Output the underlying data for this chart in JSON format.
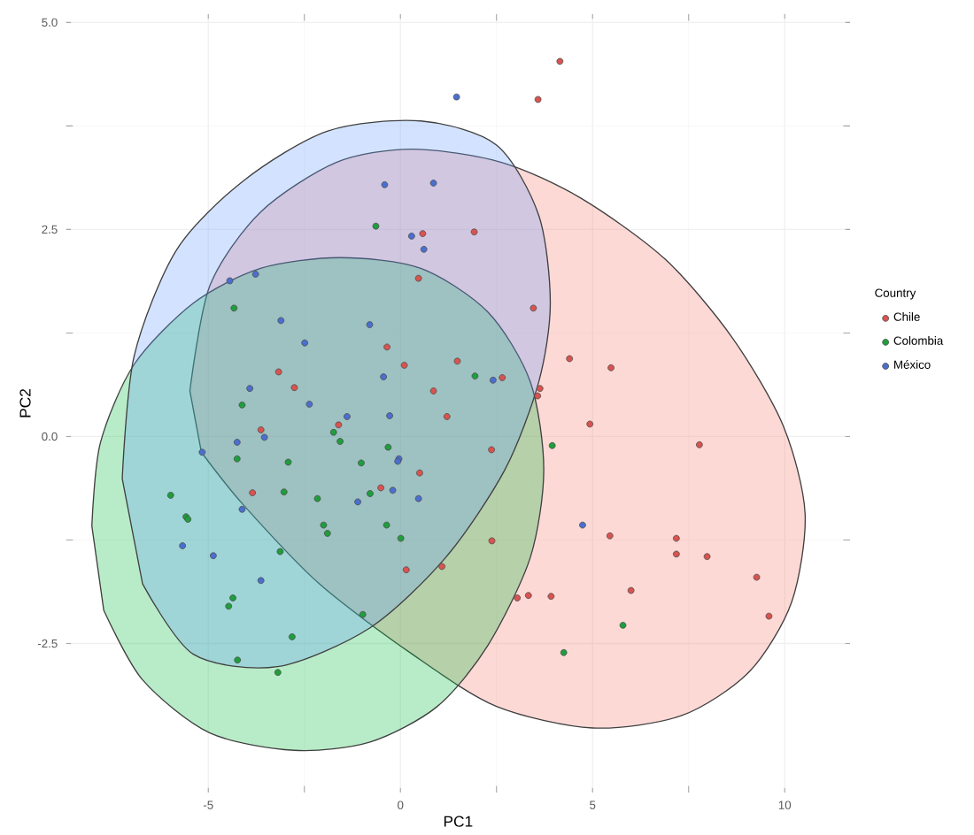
{
  "chart_data": {
    "type": "scatter",
    "xlabel": "PC1",
    "ylabel": "PC2",
    "legend_title": "Country",
    "legend": "right",
    "grid": true,
    "xlim": [
      -8.7,
      11.7
    ],
    "ylim": [
      -4.3,
      5.1
    ],
    "xticks": [
      -5,
      0,
      5,
      10
    ],
    "yticks": [
      -2.5,
      {
        "value": 0,
        "label": "0.0"
      },
      2.5,
      {
        "value": 5,
        "label": "5.0"
      }
    ],
    "series": [
      {
        "type": "area",
        "marker": "none",
        "color": "#f8766d",
        "x": [
          -5.48,
          -4.96,
          -3.64,
          -1.67,
          0.31,
          2.63,
          4.69,
          6.89,
          8.64,
          9.96,
          10.53,
          10.18,
          9.08,
          7.32,
          5.0,
          2.5,
          0.31,
          -2.11,
          -4.08,
          -5.18
        ],
        "values": [
          0.55,
          1.82,
          2.71,
          3.31,
          3.47,
          3.31,
          2.88,
          2.14,
          1.19,
          0.13,
          -0.93,
          -2.0,
          -2.84,
          -3.37,
          -3.52,
          -3.26,
          -2.63,
          -1.78,
          -0.83,
          -0.19
        ]
      },
      {
        "type": "area",
        "marker": "none",
        "color": "#00ba38",
        "x": [
          -8.03,
          -7.81,
          -6.93,
          -5.39,
          -3.64,
          -1.58,
          0.53,
          2.28,
          3.38,
          3.73,
          3.38,
          2.28,
          0.96,
          -0.79,
          -2.76,
          -4.96,
          -6.71,
          -7.72
        ],
        "values": [
          -1.08,
          -0.08,
          0.87,
          1.61,
          2.03,
          2.16,
          2.03,
          1.5,
          0.66,
          -0.4,
          -1.46,
          -2.52,
          -3.26,
          -3.69,
          -3.79,
          -3.58,
          -2.94,
          -2.1
        ]
      },
      {
        "type": "area",
        "marker": "none",
        "color": "#619cff",
        "x": [
          -7.24,
          -6.93,
          -5.83,
          -4.08,
          -1.89,
          0.53,
          2.5,
          3.6,
          3.9,
          3.6,
          2.72,
          1.18,
          -0.79,
          -3.2,
          -5.39,
          -6.71
        ],
        "values": [
          -0.51,
          0.97,
          2.25,
          3.09,
          3.69,
          3.81,
          3.52,
          2.67,
          1.61,
          0.66,
          -0.4,
          -1.46,
          -2.31,
          -2.78,
          -2.63,
          -1.78
        ]
      },
      {
        "marker": "circle",
        "name": "Chile",
        "color": "#d9534f",
        "x": [
          0.47,
          3.46,
          4.4,
          -0.35,
          0.1,
          1.48,
          2.65,
          -3.17,
          -2.76,
          0.86,
          3.63,
          3.57,
          1.21,
          -3.63,
          -1.61,
          2.37,
          0.5,
          -0.51,
          -3.85,
          2.38,
          0.58,
          1.92,
          4.15,
          3.58,
          5.48,
          4.93,
          7.78,
          5.45,
          7.18,
          7.18,
          7.98,
          9.27,
          9.59,
          3.04,
          3.33,
          3.92,
          6.0,
          1.08,
          0.15
        ],
        "values": [
          1.91,
          1.55,
          0.94,
          1.08,
          0.86,
          0.91,
          0.71,
          0.78,
          0.59,
          0.55,
          0.58,
          0.49,
          0.24,
          0.08,
          0.14,
          -0.16,
          -0.44,
          -0.62,
          -0.68,
          -1.26,
          2.45,
          2.47,
          4.53,
          4.07,
          0.83,
          0.15,
          -0.1,
          -1.2,
          -1.23,
          -1.42,
          -1.45,
          -1.7,
          -2.17,
          -1.95,
          -1.92,
          -1.93,
          -1.86,
          -1.57,
          -1.61
        ]
      },
      {
        "marker": "circle",
        "name": "Colombia",
        "color": "#1e9e3c",
        "x": [
          -4.33,
          1.94,
          -4.12,
          -1.74,
          -1.57,
          -4.25,
          -2.92,
          -0.32,
          -1.02,
          3.95,
          -3.03,
          -0.79,
          -5.98,
          -5.58,
          -5.53,
          -2.16,
          -2.0,
          -1.9,
          -0.36,
          0.01,
          -0.64,
          5.79,
          4.25,
          -3.13,
          -4.36,
          -4.47,
          -0.98,
          -2.82,
          -4.24,
          -3.19
        ],
        "values": [
          1.55,
          0.73,
          0.38,
          0.05,
          -0.06,
          -0.27,
          -0.31,
          -0.13,
          -0.32,
          -0.11,
          -0.67,
          -0.69,
          -0.71,
          -0.97,
          -1.0,
          -0.75,
          -1.07,
          -1.17,
          -1.07,
          -1.23,
          2.54,
          -2.28,
          -2.61,
          -1.39,
          -1.95,
          -2.05,
          -2.15,
          -2.42,
          -2.7,
          -2.85
        ]
      },
      {
        "marker": "circle",
        "name": "México",
        "color": "#4a6fd0",
        "x": [
          -4.44,
          -3.77,
          -3.11,
          -0.8,
          -2.49,
          -0.44,
          2.41,
          -3.92,
          -2.37,
          -1.39,
          -0.28,
          -3.54,
          -4.25,
          -5.16,
          -0.04,
          -0.07,
          -0.2,
          -1.11,
          0.47,
          -4.12,
          -5.67,
          1.46,
          -0.41,
          0.86,
          0.29,
          0.61,
          4.74,
          -4.87,
          -3.63
        ],
        "values": [
          1.88,
          1.96,
          1.4,
          1.35,
          1.13,
          0.72,
          0.68,
          0.58,
          0.39,
          0.24,
          0.25,
          -0.01,
          -0.07,
          -0.19,
          -0.27,
          -0.3,
          -0.65,
          -0.79,
          -0.75,
          -0.88,
          -1.32,
          4.1,
          3.04,
          3.06,
          2.42,
          2.26,
          -1.07,
          -1.44,
          -1.74
        ]
      }
    ]
  }
}
